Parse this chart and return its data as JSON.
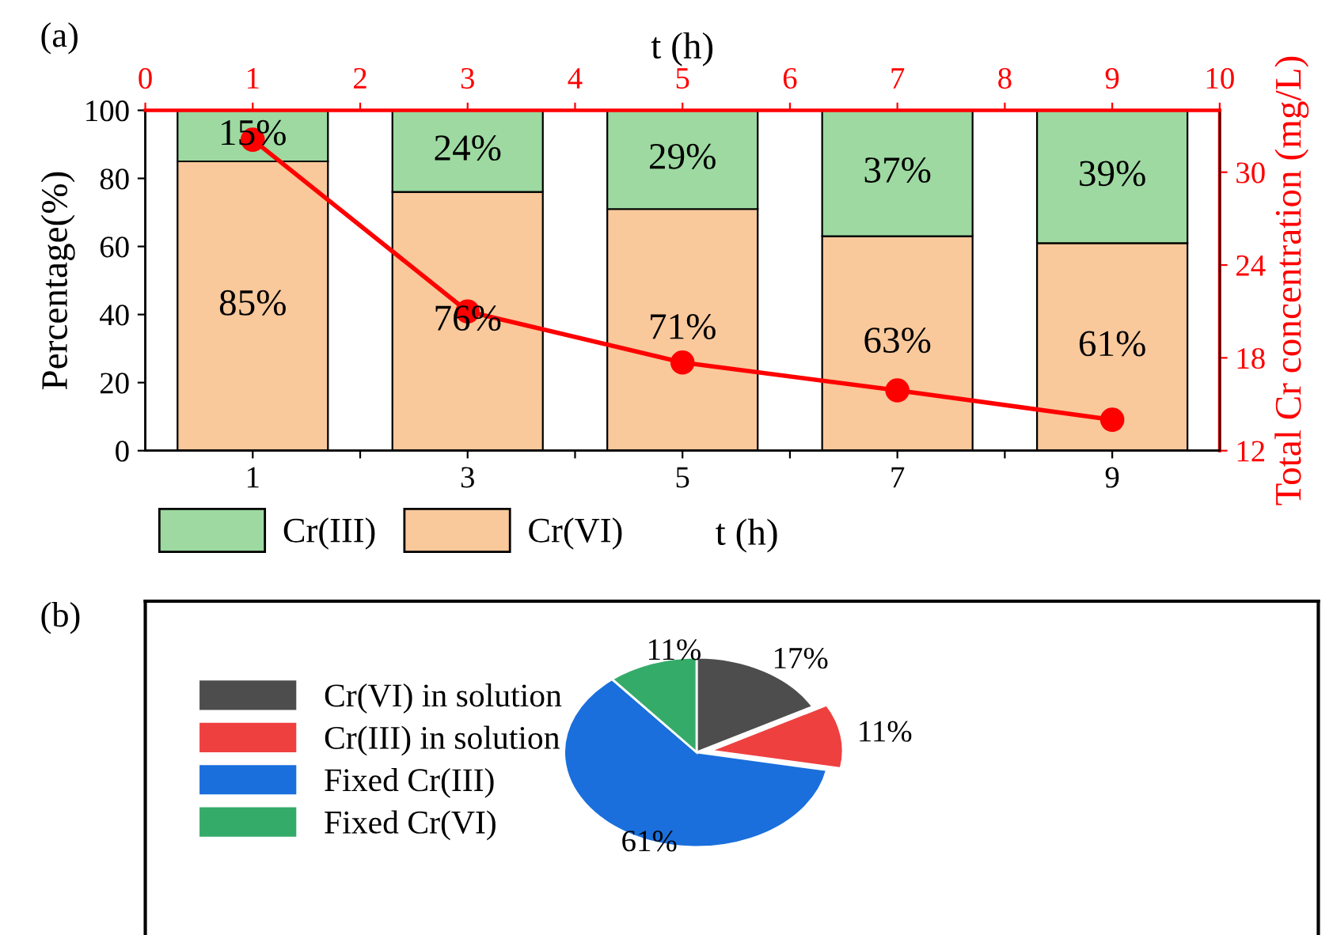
{
  "chart_data": [
    {
      "type": "bar",
      "stacked": true,
      "annotations": [
        "(a)"
      ],
      "x": [
        1,
        3,
        5,
        7,
        9
      ],
      "xlabel": "t (h)",
      "x2label": "t (h)",
      "ylabel": "Percentage(%)",
      "y2label": "Total Cr concentration (mg/L)",
      "xlim": [
        0,
        10
      ],
      "xticks": [
        1,
        {
          "value": 2,
          "label": null
        },
        3,
        {
          "value": 4,
          "label": null
        },
        5,
        {
          "value": 6,
          "label": null
        },
        7,
        {
          "value": 8,
          "label": null
        },
        9
      ],
      "x2lim": [
        0,
        10
      ],
      "x2ticks": [
        0,
        1,
        2,
        3,
        4,
        5,
        6,
        7,
        8,
        9,
        10
      ],
      "ylim": [
        0,
        100
      ],
      "yticks": [
        0,
        20,
        40,
        60,
        80,
        100
      ],
      "y2lim": [
        12,
        34
      ],
      "y2ticks": [
        12,
        18,
        24,
        30
      ],
      "legend": "bottom",
      "grid": false,
      "series": [
        {
          "name": "Cr(VI)",
          "color": "#f9c89b",
          "values": [
            85,
            76,
            71,
            63,
            61
          ],
          "value_labels": [
            "85%",
            "76%",
            "71%",
            "63%",
            "61%"
          ]
        },
        {
          "name": "Cr(III)",
          "color": "#9dd9a0",
          "values": [
            15,
            24,
            29,
            37,
            39
          ],
          "value_labels": [
            "15%",
            "24%",
            "29%",
            "37%",
            "39%"
          ]
        },
        {
          "type": "line",
          "axis": "y2",
          "color": "#ff0000",
          "marker": "circle",
          "line_style": "solid",
          "x": [
            1,
            3,
            5,
            7,
            9
          ],
          "values": [
            32.1,
            21.0,
            17.7,
            15.9,
            14.0
          ]
        }
      ]
    },
    {
      "type": "pie",
      "annotations": [
        "(b)"
      ],
      "categories": [
        "Cr(VI) in solution",
        "Cr(III) in solution",
        "Fixed Cr(III)",
        "Fixed Cr(VI)"
      ],
      "values": [
        17,
        11,
        61,
        11
      ],
      "value_labels": [
        "17%",
        "11%",
        "61%",
        "11%"
      ],
      "colors": [
        "#4d4d4d",
        "#ef4040",
        "#1a6fdc",
        "#35ab6a"
      ],
      "legend": "left"
    }
  ]
}
